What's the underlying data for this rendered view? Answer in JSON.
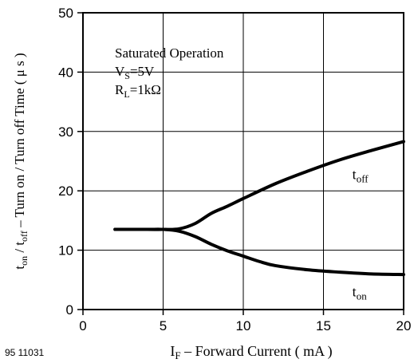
{
  "figure_id": "95 11031",
  "chart_data": {
    "type": "line",
    "xlabel": {
      "parts": [
        {
          "text": "I",
          "shift": "none"
        },
        {
          "text": "F",
          "shift": "sub"
        },
        {
          "text": " – Forward Current ( mA )",
          "shift": "none"
        }
      ]
    },
    "ylabel": {
      "parts": [
        {
          "text": "t",
          "shift": "none"
        },
        {
          "text": "on",
          "shift": "sub"
        },
        {
          "text": " / t",
          "shift": "none"
        },
        {
          "text": "off",
          "shift": "sub"
        },
        {
          "text": "  – Turn on / Turn off Time ( μ s )",
          "shift": "none"
        }
      ]
    },
    "xlim": [
      0,
      20
    ],
    "ylim": [
      0,
      50
    ],
    "x_ticks": [
      "0",
      "5",
      "10",
      "15",
      "20"
    ],
    "y_ticks": [
      "0",
      "10",
      "20",
      "30",
      "40",
      "50"
    ],
    "grid": true,
    "annotations": [
      {
        "parts": [
          {
            "text": "Saturated Operation",
            "shift": "none"
          }
        ]
      },
      {
        "parts": [
          {
            "text": "V",
            "shift": "none"
          },
          {
            "text": "S",
            "shift": "sub"
          },
          {
            "text": "=5V",
            "shift": "none"
          }
        ]
      },
      {
        "parts": [
          {
            "text": "R",
            "shift": "none"
          },
          {
            "text": "L",
            "shift": "sub"
          },
          {
            "text": "=1kΩ",
            "shift": "none"
          }
        ]
      }
    ],
    "series": [
      {
        "label_parts": [
          {
            "text": "t",
            "shift": "none"
          },
          {
            "text": "off",
            "shift": "sub"
          }
        ],
        "label_at": [
          16.8,
          22
        ],
        "points": [
          [
            2,
            13.5
          ],
          [
            4,
            13.5
          ],
          [
            5,
            13.5
          ],
          [
            6,
            13.6
          ],
          [
            7,
            14.5
          ],
          [
            8,
            16.2
          ],
          [
            9,
            17.4
          ],
          [
            10,
            18.7
          ],
          [
            12,
            21.2
          ],
          [
            14,
            23.3
          ],
          [
            16,
            25.2
          ],
          [
            18,
            26.8
          ],
          [
            20,
            28.3
          ]
        ]
      },
      {
        "label_parts": [
          {
            "text": "t",
            "shift": "none"
          },
          {
            "text": "on",
            "shift": "sub"
          }
        ],
        "label_at": [
          16.8,
          2.2
        ],
        "points": [
          [
            2,
            13.5
          ],
          [
            4,
            13.5
          ],
          [
            5,
            13.5
          ],
          [
            6,
            13.2
          ],
          [
            7,
            12.3
          ],
          [
            8,
            11.0
          ],
          [
            9,
            9.9
          ],
          [
            10,
            9.0
          ],
          [
            11,
            8.1
          ],
          [
            12,
            7.4
          ],
          [
            14,
            6.7
          ],
          [
            16,
            6.3
          ],
          [
            18,
            6.0
          ],
          [
            20,
            5.9
          ]
        ]
      }
    ]
  }
}
